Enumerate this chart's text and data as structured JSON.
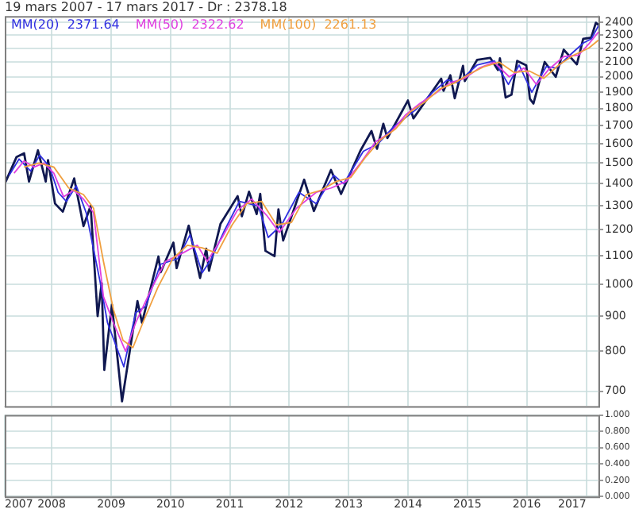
{
  "chart_data": [
    {
      "type": "line",
      "title": "19 mars 2007 - 17 mars 2017 - Dr : 2378.18",
      "log": "y",
      "grid": true,
      "legend": "top left",
      "marker": "none",
      "line_style": "solid",
      "tick_labels": "y",
      "xlim": [
        "2007-03-19",
        "2017-03-17"
      ],
      "xticks": [
        "2008",
        "2009",
        "2010",
        "2011",
        "2012",
        "2013",
        "2014",
        "2015",
        "2016",
        "2017"
      ],
      "ylim": [
        666,
        2450
      ],
      "yticks": [
        700,
        800,
        900,
        1000,
        1100,
        1200,
        1300,
        1400,
        1500,
        1600,
        1700,
        1800,
        1900,
        2000,
        2100,
        2200,
        2300,
        2400
      ],
      "series": [
        {
          "color": "#101850",
          "x": [
            "2007-03-19",
            "2007-05-30",
            "2007-07-16",
            "2007-08-15",
            "2007-10-09",
            "2007-11-26",
            "2007-12-10",
            "2008-01-22",
            "2008-03-10",
            "2008-05-19",
            "2008-07-15",
            "2008-08-28",
            "2008-10-10",
            "2008-11-04",
            "2008-11-20",
            "2009-01-06",
            "2009-03-09",
            "2009-06-12",
            "2009-07-10",
            "2009-10-19",
            "2009-11-02",
            "2010-01-19",
            "2010-02-08",
            "2010-04-23",
            "2010-07-02",
            "2010-08-09",
            "2010-08-26",
            "2010-11-05",
            "2011-02-18",
            "2011-03-16",
            "2011-04-29",
            "2011-06-15",
            "2011-07-07",
            "2011-08-08",
            "2011-10-03",
            "2011-10-27",
            "2011-11-25",
            "2012-04-02",
            "2012-06-01",
            "2012-09-14",
            "2012-11-15",
            "2013-03-14",
            "2013-05-21",
            "2013-06-24",
            "2013-08-02",
            "2013-08-27",
            "2013-12-31",
            "2014-02-03",
            "2014-07-24",
            "2014-08-07",
            "2014-09-18",
            "2014-10-15",
            "2014-12-05",
            "2014-12-16",
            "2015-03-02",
            "2015-05-21",
            "2015-07-08",
            "2015-07-20",
            "2015-08-24",
            "2015-09-29",
            "2015-11-03",
            "2015-12-29",
            "2016-01-20",
            "2016-02-11",
            "2016-04-20",
            "2016-06-27",
            "2016-08-15",
            "2016-11-04",
            "2016-12-13",
            "2017-01-31",
            "2017-03-01",
            "2017-03-17"
          ],
          "values": [
            1400,
            1530,
            1550,
            1410,
            1565,
            1410,
            1515,
            1310,
            1275,
            1425,
            1215,
            1300,
            900,
            1005,
            752,
            935,
            677,
            946,
            880,
            1098,
            1042,
            1150,
            1056,
            1217,
            1022,
            1127,
            1047,
            1225,
            1343,
            1256,
            1363,
            1265,
            1353,
            1119,
            1099,
            1285,
            1158,
            1419,
            1278,
            1466,
            1353,
            1563,
            1669,
            1573,
            1710,
            1630,
            1848,
            1741,
            1988,
            1909,
            2011,
            1862,
            2075,
            1972,
            2117,
            2131,
            2046,
            2128,
            1867,
            1884,
            2109,
            2078,
            1859,
            1829,
            2102,
            2000,
            2190,
            2085,
            2271,
            2279,
            2396,
            2378
          ]
        },
        {
          "name": "MM(20)  2371.64",
          "color": "#3030e0",
          "x": [
            "2007-04-15",
            "2007-06-15",
            "2007-08-25",
            "2007-10-20",
            "2007-12-20",
            "2008-02-10",
            "2008-04-01",
            "2008-06-01",
            "2008-08-01",
            "2008-10-25",
            "2008-12-10",
            "2009-03-20",
            "2009-06-01",
            "2009-08-01",
            "2009-11-01",
            "2010-02-15",
            "2010-05-01",
            "2010-07-15",
            "2010-09-10",
            "2010-12-01",
            "2011-03-01",
            "2011-06-25",
            "2011-08-25",
            "2011-11-15",
            "2012-03-01",
            "2012-06-15",
            "2012-10-01",
            "2012-12-01",
            "2013-04-01",
            "2013-07-01",
            "2013-10-01",
            "2014-02-15",
            "2014-06-01",
            "2014-09-01",
            "2014-11-01",
            "2015-03-01",
            "2015-06-15",
            "2015-09-10",
            "2015-11-15",
            "2016-02-01",
            "2016-04-30",
            "2016-07-01",
            "2016-10-01",
            "2016-12-15",
            "2017-02-01",
            "2017-03-17"
          ],
          "values": [
            1440,
            1520,
            1460,
            1540,
            1480,
            1360,
            1320,
            1390,
            1270,
            1010,
            880,
            760,
            910,
            930,
            1070,
            1090,
            1180,
            1040,
            1090,
            1200,
            1320,
            1300,
            1170,
            1220,
            1360,
            1310,
            1440,
            1400,
            1560,
            1600,
            1690,
            1790,
            1900,
            1980,
            1960,
            2080,
            2110,
            1950,
            2080,
            1900,
            2070,
            2060,
            2160,
            2240,
            2270,
            2371.64
          ]
        },
        {
          "name": "MM(50)  2322.62",
          "color": "#e040e0",
          "x": [
            "2007-05-15",
            "2007-07-15",
            "2007-09-15",
            "2007-11-15",
            "2008-01-15",
            "2008-03-15",
            "2008-05-15",
            "2008-07-15",
            "2008-09-15",
            "2008-11-15",
            "2009-01-15",
            "2009-03-31",
            "2009-06-01",
            "2009-09-01",
            "2009-12-01",
            "2010-03-15",
            "2010-06-15",
            "2010-08-15",
            "2010-11-15",
            "2011-02-15",
            "2011-05-15",
            "2011-08-15",
            "2011-11-01",
            "2012-02-15",
            "2012-06-15",
            "2012-09-15",
            "2012-12-15",
            "2013-03-15",
            "2013-06-15",
            "2013-09-15",
            "2013-12-15",
            "2014-03-15",
            "2014-06-15",
            "2014-09-15",
            "2014-12-15",
            "2015-03-15",
            "2015-06-15",
            "2015-09-15",
            "2015-12-15",
            "2016-02-29",
            "2016-05-15",
            "2016-08-15",
            "2016-11-15",
            "2017-01-15",
            "2017-03-17"
          ],
          "values": [
            1450,
            1510,
            1480,
            1500,
            1450,
            1340,
            1370,
            1330,
            1270,
            960,
            880,
            800,
            880,
            980,
            1080,
            1110,
            1140,
            1080,
            1170,
            1280,
            1330,
            1260,
            1190,
            1290,
            1360,
            1380,
            1410,
            1500,
            1610,
            1660,
            1760,
            1830,
            1890,
            1960,
            1990,
            2060,
            2100,
            2000,
            2060,
            1950,
            2050,
            2140,
            2150,
            2230,
            2322.62
          ]
        },
        {
          "name": "MM(100)  2261.13",
          "color": "#f0a040",
          "x": [
            "2007-07-15",
            "2007-10-15",
            "2008-01-15",
            "2008-04-15",
            "2008-07-15",
            "2008-09-15",
            "2008-11-15",
            "2009-01-15",
            "2009-03-15",
            "2009-05-15",
            "2009-07-15",
            "2009-10-15",
            "2010-01-15",
            "2010-04-15",
            "2010-07-15",
            "2010-10-15",
            "2011-01-15",
            "2011-04-15",
            "2011-07-15",
            "2011-10-15",
            "2012-01-15",
            "2012-04-15",
            "2012-07-15",
            "2012-10-15",
            "2013-01-15",
            "2013-04-15",
            "2013-07-15",
            "2013-10-15",
            "2014-01-15",
            "2014-04-15",
            "2014-07-15",
            "2014-10-15",
            "2015-01-15",
            "2015-04-15",
            "2015-07-15",
            "2015-10-15",
            "2016-01-15",
            "2016-04-15",
            "2016-07-15",
            "2016-10-15",
            "2017-01-15",
            "2017-03-17"
          ],
          "values": [
            1480,
            1500,
            1480,
            1380,
            1350,
            1290,
            1080,
            920,
            830,
            810,
            880,
            990,
            1090,
            1140,
            1130,
            1110,
            1220,
            1310,
            1320,
            1220,
            1230,
            1350,
            1370,
            1410,
            1430,
            1530,
            1620,
            1680,
            1780,
            1840,
            1920,
            1960,
            2020,
            2070,
            2100,
            2030,
            2040,
            1990,
            2080,
            2150,
            2200,
            2261.13
          ]
        }
      ]
    },
    {
      "type": "line",
      "grid": true,
      "xlim": [
        "2007-03-19",
        "2017-03-17"
      ],
      "xticks": [
        {
          "value": "2007-03-19",
          "label": "2007"
        },
        "2008",
        "2009",
        "2010",
        "2011",
        "2012",
        "2013",
        "2014",
        "2015",
        "2016",
        "2017"
      ],
      "ylim": [
        0,
        1
      ],
      "yticks": [
        {
          "value": 0,
          "label": "0.000"
        },
        {
          "value": 0.2,
          "label": "0.200"
        },
        {
          "value": 0.4,
          "label": "0.400"
        },
        {
          "value": 0.6,
          "label": "0.600"
        },
        {
          "value": 0.8,
          "label": "0.800"
        },
        {
          "value": 1,
          "label": "1.000"
        }
      ]
    }
  ]
}
